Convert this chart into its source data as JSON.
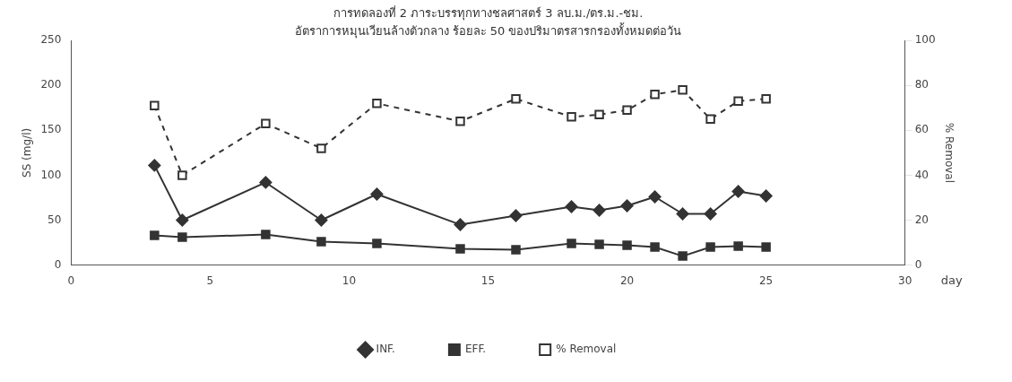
{
  "chart_data": {
    "type": "line",
    "title": "การทดลองที่ 2 ภาระบรรทุกทางชลศาสตร์ 3 ลบ.ม./ตร.ม.-ชม.",
    "subtitle": "อัตราการหมุนเวียนล้างตัวกลาง ร้อยละ 50 ของปริมาตรสารกรองทั้งหมดต่อวัน",
    "xlabel": "day",
    "ylabel": "SS (mg/l)",
    "y2label": "% Removal",
    "x": [
      3,
      4,
      7,
      9,
      11,
      14,
      16,
      18,
      19,
      20,
      21,
      22,
      23,
      24,
      25
    ],
    "xlim": [
      0,
      30
    ],
    "xticks": [
      0,
      5,
      10,
      15,
      20,
      25,
      30
    ],
    "ylim": [
      0,
      250
    ],
    "yticks": [
      0,
      50,
      100,
      150,
      200,
      250
    ],
    "y2lim": [
      0,
      100
    ],
    "y2ticks": [
      0,
      20,
      40,
      60,
      80,
      100
    ],
    "grid": false,
    "legend": "bottom",
    "series": [
      {
        "name": "INF.",
        "color": "#333333",
        "marker": "diamond",
        "line_style": "solid",
        "values": [
          111,
          50,
          92,
          50,
          79,
          45,
          55,
          65,
          61,
          66,
          76,
          57,
          57,
          82,
          77
        ]
      },
      {
        "name": "EFF.",
        "color": "#333333",
        "marker": "square",
        "line_style": "solid",
        "values": [
          33,
          31,
          34,
          26,
          24,
          18,
          17,
          24,
          23,
          22,
          20,
          10,
          20,
          21,
          20
        ]
      },
      {
        "name": "% Removal",
        "color": "#333333",
        "marker": "square",
        "line_style": "dashed",
        "axis": "y2",
        "values": [
          71,
          40,
          63,
          52,
          72,
          64,
          74,
          66,
          67,
          69,
          76,
          78,
          65,
          73,
          74
        ]
      }
    ]
  }
}
